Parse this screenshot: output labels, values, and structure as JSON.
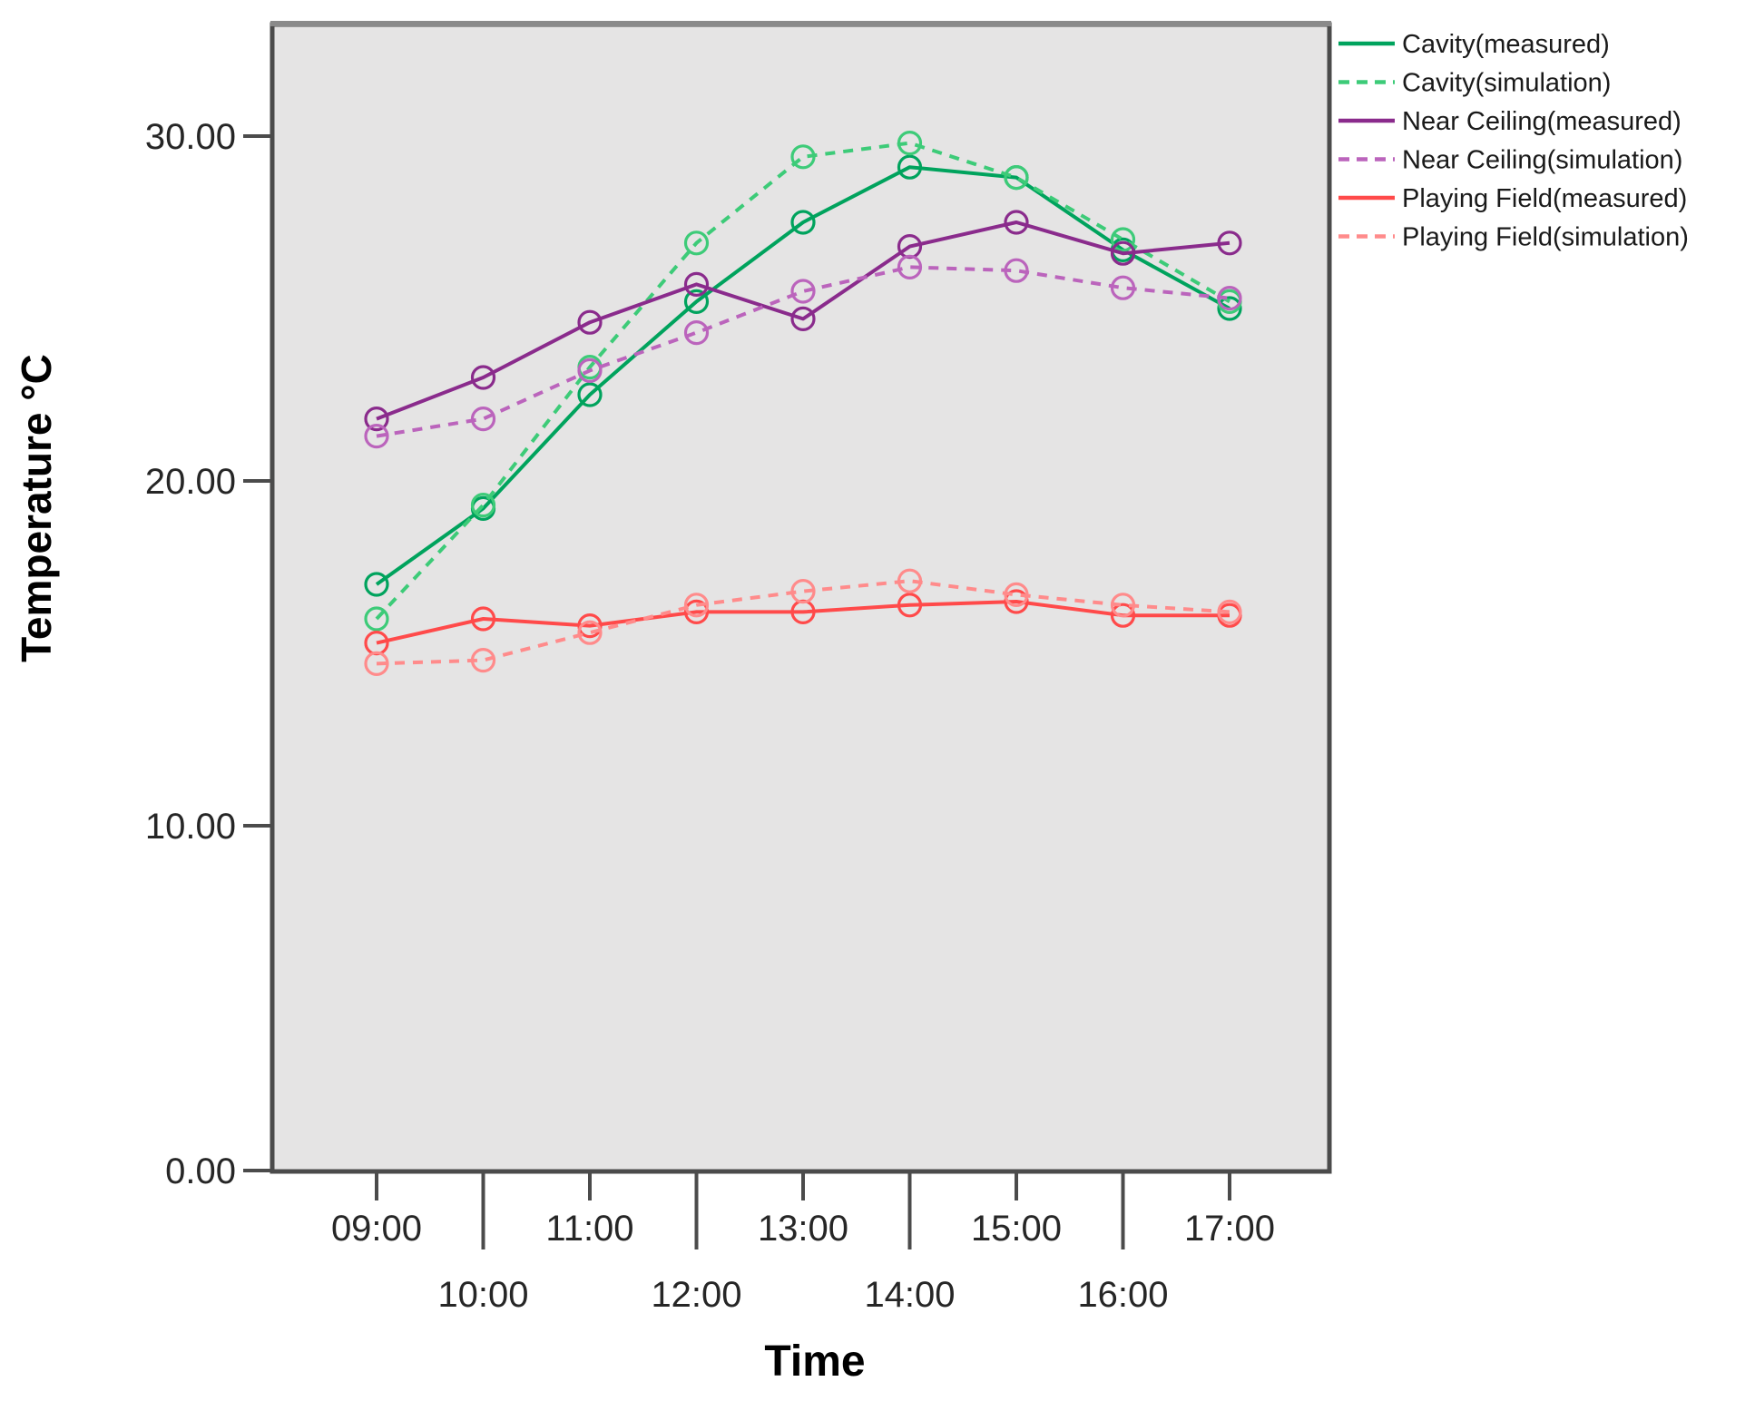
{
  "chart_data": {
    "type": "line",
    "title": "",
    "xlabel": "Time",
    "ylabel": "Temperature °C",
    "categories": [
      "09:00",
      "10:00",
      "11:00",
      "12:00",
      "13:00",
      "14:00",
      "15:00",
      "16:00",
      "17:00"
    ],
    "y_ticks": [
      {
        "label": "0.00",
        "value": 0
      },
      {
        "label": "10.00",
        "value": 10
      },
      {
        "label": "20.00",
        "value": 20
      },
      {
        "label": "30.00",
        "value": 30
      }
    ],
    "ylim": [
      0,
      33.2
    ],
    "grid": false,
    "legend_position": "top-right",
    "plot_background": "#e5e4e4",
    "frame_color": "#4b4b4b",
    "frame_top_color": "#8a8a8a",
    "series": [
      {
        "name": "Cavity(measured)",
        "style": "solid",
        "color": "#00a35d",
        "values": [
          17.0,
          19.2,
          22.5,
          25.2,
          27.5,
          29.1,
          28.8,
          26.7,
          25.0
        ]
      },
      {
        "name": "Cavity(simulation)",
        "style": "dashed",
        "color": "#3dcb78",
        "values": [
          16.0,
          19.3,
          23.3,
          26.9,
          29.4,
          29.8,
          28.8,
          27.0,
          25.2
        ]
      },
      {
        "name": "Near Ceiling(measured)",
        "style": "solid",
        "color": "#8a2b8c",
        "values": [
          21.8,
          23.0,
          24.6,
          25.7,
          24.7,
          26.8,
          27.5,
          26.6,
          26.9
        ]
      },
      {
        "name": "Near Ceiling(simulation)",
        "style": "dashed",
        "color": "#bb64bc",
        "values": [
          21.3,
          21.8,
          23.2,
          24.3,
          25.5,
          26.2,
          26.1,
          25.6,
          25.3
        ]
      },
      {
        "name": "Playing Field(measured)",
        "style": "solid",
        "color": "#ff4a4a",
        "values": [
          15.3,
          16.0,
          15.8,
          16.2,
          16.2,
          16.4,
          16.5,
          16.1,
          16.1
        ]
      },
      {
        "name": "Playing Field(simulation)",
        "style": "dashed",
        "color": "#ff8b8b",
        "values": [
          14.7,
          14.8,
          15.6,
          16.4,
          16.8,
          17.1,
          16.7,
          16.4,
          16.2
        ]
      }
    ]
  }
}
